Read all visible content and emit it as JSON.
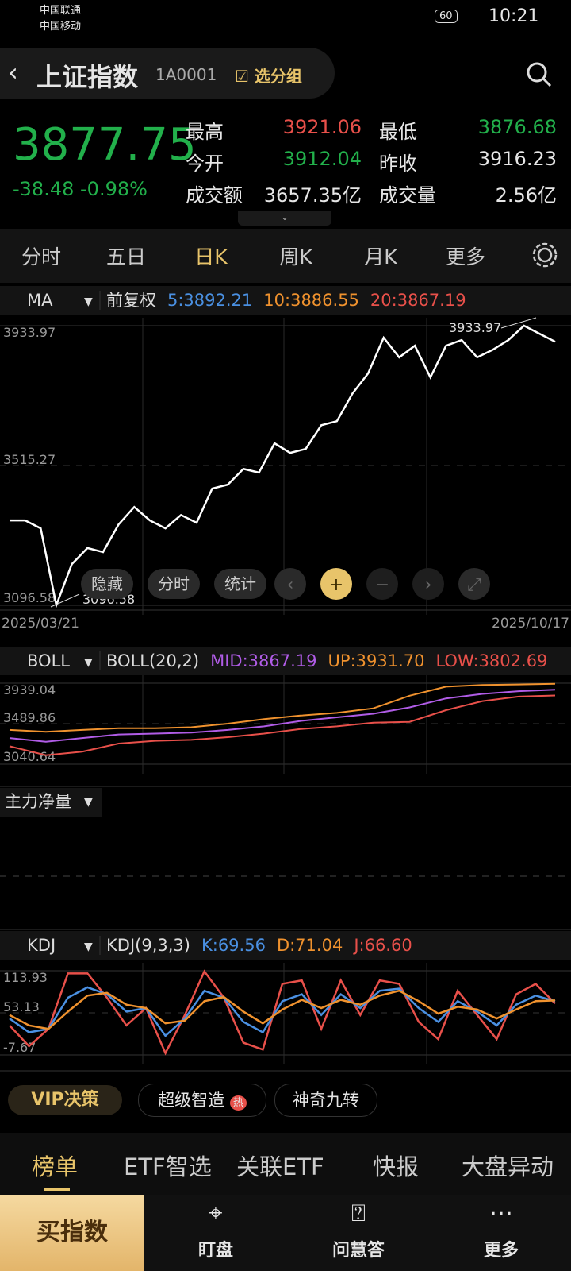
{
  "status_bar": {
    "carrier1": "中国联通",
    "carrier2": "中国移动",
    "battery": "60",
    "time": "10:21"
  },
  "header": {
    "title": "上证指数",
    "code": "1A0001",
    "group": "选分组"
  },
  "quote": {
    "price": "3877.75",
    "change": "-38.48",
    "change_pct": "-0.98%",
    "stats": [
      {
        "label": "最高",
        "value": "3921.06",
        "color": "#e8504a"
      },
      {
        "label": "最低",
        "value": "3876.68",
        "color": "#22b04b"
      },
      {
        "label": "今开",
        "value": "3912.04",
        "color": "#22b04b"
      },
      {
        "label": "昨收",
        "value": "3916.23",
        "color": "#e6e6e6"
      },
      {
        "label": "成交额",
        "value": "3657.35亿",
        "color": "#e6e6e6"
      },
      {
        "label": "成交量",
        "value": "2.56亿",
        "color": "#e6e6e6"
      }
    ]
  },
  "tabs": [
    "分时",
    "五日",
    "日K",
    "周K",
    "月K",
    "更多"
  ],
  "active_tab": 2,
  "main_chart": {
    "indicator": "MA",
    "adjust": "前复权",
    "ma": [
      {
        "label": "5:3892.21",
        "color": "#4a90e2"
      },
      {
        "label": "10:3886.55",
        "color": "#f0922e"
      },
      {
        "label": "20:3867.19",
        "color": "#e8504a"
      }
    ],
    "ylim": [
      3096.58,
      3933.97
    ],
    "yticks": [
      3096.58,
      3515.27,
      3933.97
    ],
    "values": [
      3351,
      3351,
      3327,
      3097,
      3220,
      3268,
      3256,
      3339,
      3391,
      3351,
      3327,
      3367,
      3344,
      3446,
      3458,
      3505,
      3494,
      3582,
      3553,
      3565,
      3636,
      3648,
      3731,
      3791,
      3898,
      3839,
      3874,
      3779,
      3874,
      3891,
      3839,
      3862,
      3891,
      3933.97,
      3910,
      3886
    ],
    "high_label": "3933.97",
    "low_label": "3096.58",
    "x_start": "2025/03/21",
    "x_end": "2025/10/17",
    "buttons": [
      "隐藏",
      "分时",
      "统计"
    ]
  },
  "boll_chart": {
    "indicator": "BOLL",
    "params": "BOLL(20,2)",
    "legend": [
      {
        "label": "MID:3867.19",
        "color": "#b05ce6"
      },
      {
        "label": "UP:3931.70",
        "color": "#f0922e"
      },
      {
        "label": "LOW:3802.69",
        "color": "#e8504a"
      }
    ],
    "ylim": [
      3040.64,
      3939.04
    ],
    "yticks": [
      3040.64,
      3489.86,
      3939.04
    ],
    "mid": [
      3330,
      3290,
      3330,
      3370,
      3380,
      3390,
      3420,
      3460,
      3520,
      3560,
      3600,
      3670,
      3770,
      3820,
      3850,
      3867.19
    ],
    "up": [
      3420,
      3400,
      3420,
      3440,
      3440,
      3450,
      3490,
      3540,
      3580,
      3610,
      3660,
      3800,
      3900,
      3920,
      3925,
      3931.7
    ],
    "low": [
      3240,
      3140,
      3180,
      3270,
      3300,
      3310,
      3340,
      3380,
      3430,
      3460,
      3500,
      3510,
      3640,
      3740,
      3790,
      3802.69
    ]
  },
  "flow_chart": {
    "title": "主力净量"
  },
  "kdj_chart": {
    "indicator": "KDJ",
    "params": "KDJ(9,3,3)",
    "legend": [
      {
        "label": "K:69.56",
        "color": "#4a90e2"
      },
      {
        "label": "D:71.04",
        "color": "#f0922e"
      },
      {
        "label": "J:66.60",
        "color": "#e8504a"
      }
    ],
    "ylim": [
      -7.67,
      113.93
    ],
    "yticks": [
      -7.67,
      53.13,
      113.93
    ],
    "k": [
      45,
      25,
      30,
      75,
      90,
      80,
      55,
      60,
      20,
      45,
      85,
      75,
      40,
      25,
      70,
      80,
      50,
      80,
      60,
      85,
      88,
      60,
      40,
      70,
      55,
      35,
      65,
      78,
      70
    ],
    "d": [
      50,
      35,
      30,
      55,
      78,
      82,
      65,
      60,
      38,
      42,
      70,
      76,
      55,
      38,
      58,
      72,
      60,
      72,
      65,
      78,
      85,
      70,
      52,
      62,
      58,
      45,
      58,
      70,
      71
    ],
    "j": [
      35,
      5,
      30,
      110,
      110,
      75,
      35,
      60,
      -5,
      50,
      113,
      75,
      10,
      0,
      95,
      100,
      30,
      100,
      50,
      100,
      95,
      40,
      15,
      85,
      50,
      15,
      80,
      95,
      66.6
    ]
  },
  "chips": {
    "vip": "VIP决策",
    "items": [
      "超级智造",
      "神奇九转"
    ],
    "hot": "热"
  },
  "news_tabs": [
    "榜单",
    "ETF智选",
    "关联ETF",
    "快报",
    "大盘异动"
  ],
  "nav": {
    "buy": "买指数",
    "items": [
      "盯盘",
      "问慧答",
      "更多"
    ]
  }
}
